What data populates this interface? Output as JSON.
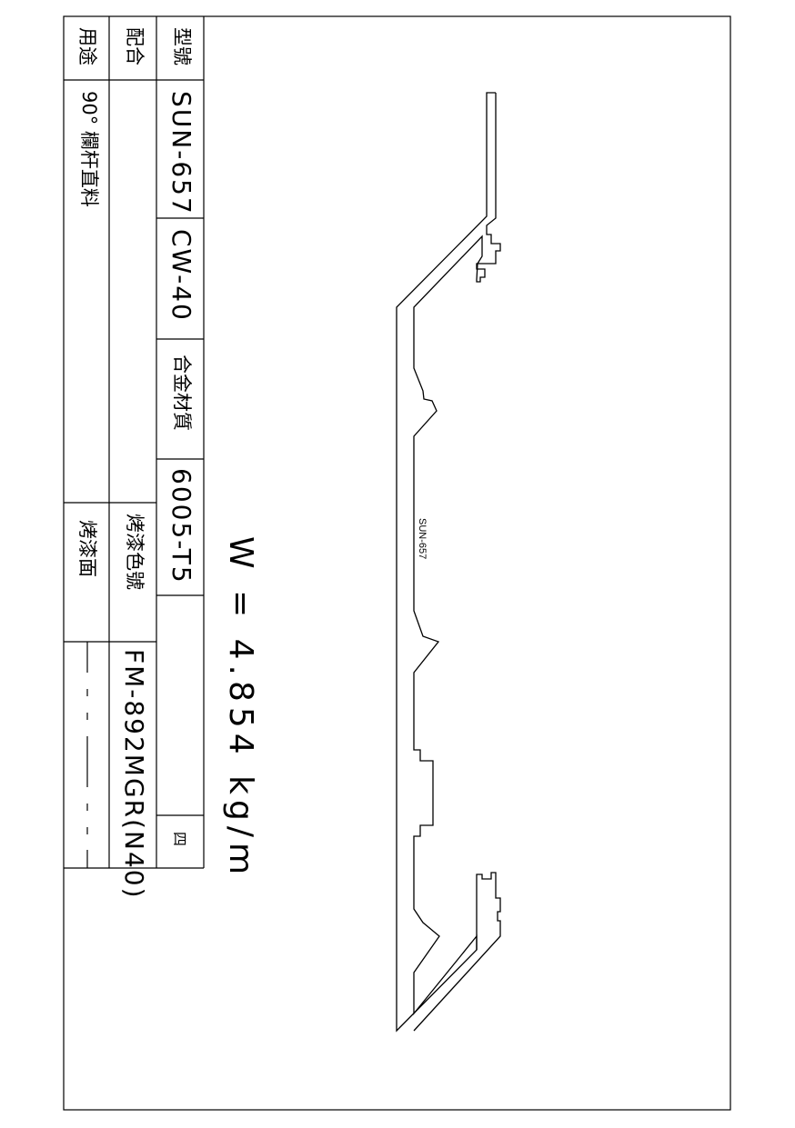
{
  "title_block": {
    "model_label": "型號",
    "model_value": "SUN-657",
    "model_code": "CW-40",
    "material_label": "合金材質",
    "material_value": "6005-T5",
    "sheet_mark": "四",
    "fit_label": "配合",
    "fit_value": "",
    "paint_color_label": "烤漆色號",
    "paint_color_value": "FM-892MGR(N40)",
    "use_label": "用途",
    "use_value": "90° 欄杆直料",
    "paint_face_label": "烤漆面"
  },
  "weight": "W = 4.854 kg/m",
  "profile_label": "SUN-657"
}
